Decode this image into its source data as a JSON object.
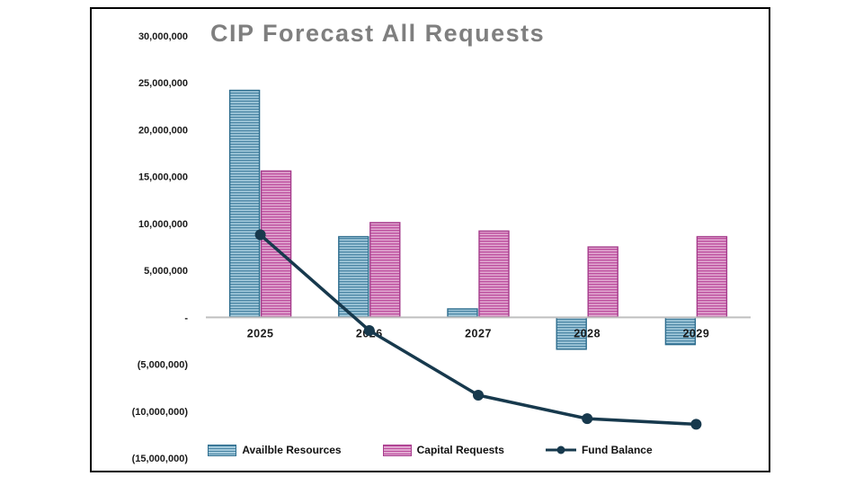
{
  "page": {
    "background": "#ffffff",
    "frame_border": "#000000"
  },
  "chart_data": {
    "type": "combo-bar-line",
    "title": "CIP Forecast All Requests",
    "title_color": "#7f7f7f",
    "categories": [
      "2025",
      "2026",
      "2027",
      "2028",
      "2029"
    ],
    "series": [
      {
        "name": "Availble Resources",
        "type": "bar",
        "fill_light": "#a3cadc",
        "fill_dark": "#4984a3",
        "border": "#2e6d8e",
        "values": [
          24200000,
          8600000,
          900000,
          -3400000,
          -2900000
        ]
      },
      {
        "name": "Capital Requests",
        "type": "bar",
        "fill_light": "#e0a6cf",
        "fill_dark": "#bc4d9d",
        "border": "#a63c8c",
        "values": [
          15600000,
          10100000,
          9200000,
          7500000,
          8600000
        ]
      },
      {
        "name": "Fund Balance",
        "type": "line",
        "color": "#17394d",
        "values": [
          8800000,
          -1400000,
          -8300000,
          -10800000,
          -11400000
        ]
      }
    ],
    "ylim": [
      -15000000,
      30000000
    ],
    "y_ticks": [
      30000000,
      25000000,
      20000000,
      15000000,
      10000000,
      5000000,
      0,
      -5000000,
      -10000000,
      -15000000
    ],
    "y_tick_labels": [
      "30,000,000",
      "25,000,000",
      "20,000,000",
      "15,000,000",
      "10,000,000",
      "5,000,000",
      "-",
      "(5,000,000)",
      "(10,000,000)",
      "(15,000,000)"
    ],
    "grid": false,
    "legend_position": "bottom",
    "axis_line_color": "#bfbfbf",
    "label_color": "#1a1a1a"
  }
}
